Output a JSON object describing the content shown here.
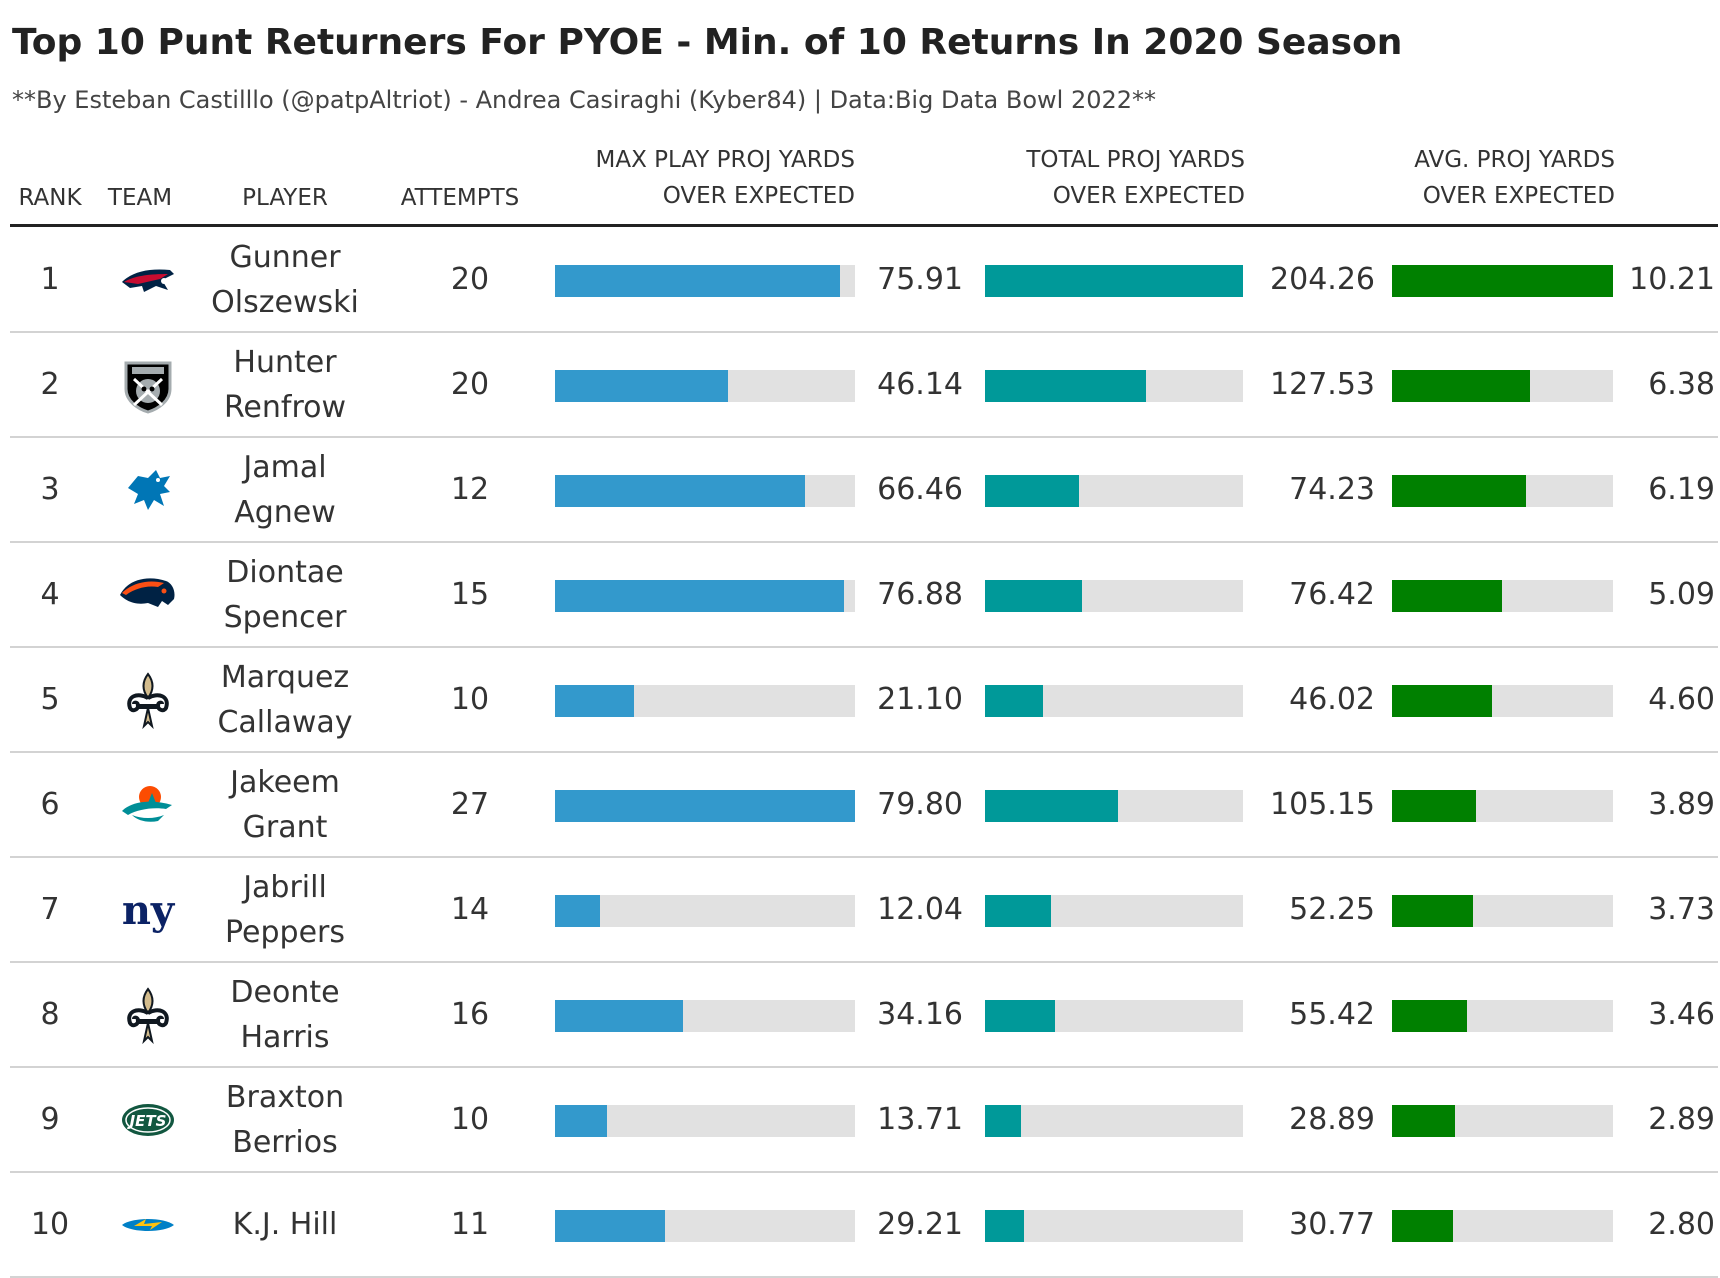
{
  "title": "Top 10 Punt Returners For PYOE - Min. of 10 Returns In 2020 Season",
  "subtitle": "**By Esteban Castilllo (@patpAltriot) - Andrea Casiraghi (Kyber84) | Data:Big Data Bowl 2022**",
  "columns": {
    "rank": "RANK",
    "team": "TEAM",
    "player": "PLAYER",
    "attempts": "ATTEMPTS",
    "max_line1": "MAX PLAY PROJ YARDS",
    "max_line2": "OVER EXPECTED",
    "total_line1": "TOTAL PROJ YARDS",
    "total_line2": "OVER EXPECTED",
    "avg_line1": "AVG. PROJ YARDS",
    "avg_line2": "OVER EXPECTED"
  },
  "colors": {
    "max_bar": "#3399cc",
    "total_bar": "#009999",
    "avg_bar": "#008000",
    "track": "#e1e1e1"
  },
  "chart_data": {
    "type": "table",
    "bar_scales": {
      "max": [
        0,
        79.8
      ],
      "total": [
        0,
        204.26
      ],
      "avg": [
        0,
        10.21
      ]
    },
    "rows": [
      {
        "rank": "1",
        "team_icon": "patriots-logo-icon",
        "player_first": "Gunner",
        "player_last": "Olszewski",
        "attempts": "20",
        "max": 75.91,
        "max_label": "75.91",
        "total": 204.26,
        "total_label": "204.26",
        "avg": 10.21,
        "avg_label": "10.21"
      },
      {
        "rank": "2",
        "team_icon": "raiders-logo-icon",
        "player_first": "Hunter",
        "player_last": "Renfrow",
        "attempts": "20",
        "max": 46.14,
        "max_label": "46.14",
        "total": 127.53,
        "total_label": "127.53",
        "avg": 6.38,
        "avg_label": "6.38"
      },
      {
        "rank": "3",
        "team_icon": "lions-logo-icon",
        "player_first": "Jamal",
        "player_last": "Agnew",
        "attempts": "12",
        "max": 66.46,
        "max_label": "66.46",
        "total": 74.23,
        "total_label": "74.23",
        "avg": 6.19,
        "avg_label": "6.19"
      },
      {
        "rank": "4",
        "team_icon": "broncos-logo-icon",
        "player_first": "Diontae",
        "player_last": "Spencer",
        "attempts": "15",
        "max": 76.88,
        "max_label": "76.88",
        "total": 76.42,
        "total_label": "76.42",
        "avg": 5.09,
        "avg_label": "5.09"
      },
      {
        "rank": "5",
        "team_icon": "saints-logo-icon",
        "player_first": "Marquez",
        "player_last": "Callaway",
        "attempts": "10",
        "max": 21.1,
        "max_label": "21.10",
        "total": 46.02,
        "total_label": "46.02",
        "avg": 4.6,
        "avg_label": "4.60"
      },
      {
        "rank": "6",
        "team_icon": "dolphins-logo-icon",
        "player_first": "Jakeem",
        "player_last": "Grant",
        "attempts": "27",
        "max": 79.8,
        "max_label": "79.80",
        "total": 105.15,
        "total_label": "105.15",
        "avg": 3.89,
        "avg_label": "3.89"
      },
      {
        "rank": "7",
        "team_icon": "giants-logo-icon",
        "player_first": "Jabrill",
        "player_last": "Peppers",
        "attempts": "14",
        "max": 12.04,
        "max_label": "12.04",
        "total": 52.25,
        "total_label": "52.25",
        "avg": 3.73,
        "avg_label": "3.73"
      },
      {
        "rank": "8",
        "team_icon": "saints-logo-icon",
        "player_first": "Deonte",
        "player_last": "Harris",
        "attempts": "16",
        "max": 34.16,
        "max_label": "34.16",
        "total": 55.42,
        "total_label": "55.42",
        "avg": 3.46,
        "avg_label": "3.46"
      },
      {
        "rank": "9",
        "team_icon": "jets-logo-icon",
        "player_first": "Braxton",
        "player_last": "Berrios",
        "attempts": "10",
        "max": 13.71,
        "max_label": "13.71",
        "total": 28.89,
        "total_label": "28.89",
        "avg": 2.89,
        "avg_label": "2.89"
      },
      {
        "rank": "10",
        "team_icon": "chargers-logo-icon",
        "player_first": "K.J. Hill",
        "player_last": "",
        "attempts": "11",
        "max": 29.21,
        "max_label": "29.21",
        "total": 30.77,
        "total_label": "30.77",
        "avg": 2.8,
        "avg_label": "2.80"
      }
    ]
  }
}
